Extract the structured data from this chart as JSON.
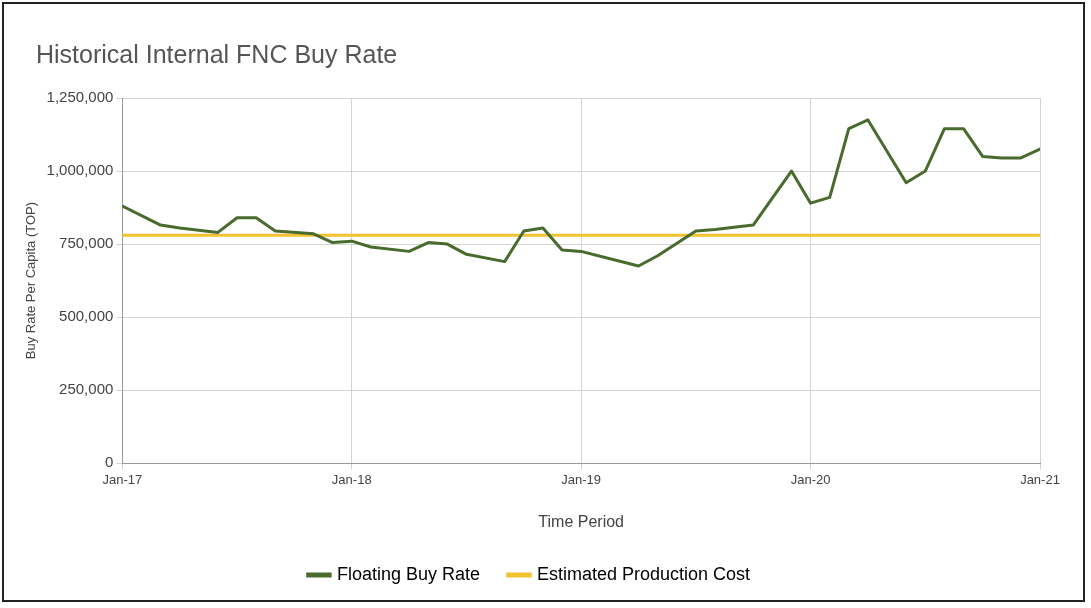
{
  "chart_data": {
    "type": "line",
    "title": "Historical Internal FNC Buy Rate",
    "xlabel": "Time Period",
    "ylabel": "Buy Rate Per Capita (TOP)",
    "xlim": [
      "2017-01",
      "2021-01"
    ],
    "xticks": [
      {
        "value": "2017-01",
        "label": "Jan-17"
      },
      {
        "value": "2018-01",
        "label": "Jan-18"
      },
      {
        "value": "2019-01",
        "label": "Jan-19"
      },
      {
        "value": "2020-01",
        "label": "Jan-20"
      },
      {
        "value": "2021-01",
        "label": "Jan-21"
      }
    ],
    "ylim": [
      0,
      1250000
    ],
    "yticks": [
      0,
      {
        "value": 250000,
        "label": "250,000"
      },
      {
        "value": 500000,
        "label": "500,000"
      },
      {
        "value": 750000,
        "label": "750,000"
      },
      {
        "value": 1000000,
        "label": "1,000,000"
      },
      {
        "value": 1250000,
        "label": "1,250,000"
      }
    ],
    "grid": true,
    "legend": "bottom",
    "marker": "none",
    "line_style": "solid",
    "series": [
      {
        "name": "Floating Buy Rate",
        "color": "#4a6b2e",
        "x": [
          "2017-01",
          "2017-03",
          "2017-04",
          "2017-06",
          "2017-07",
          "2017-08",
          "2017-09",
          "2017-11",
          "2017-12",
          "2018-01",
          "2018-02",
          "2018-04",
          "2018-05",
          "2018-06",
          "2018-07",
          "2018-09",
          "2018-10",
          "2018-11",
          "2018-12",
          "2019-01",
          "2019-04",
          "2019-05",
          "2019-07",
          "2019-08",
          "2019-10",
          "2019-12",
          "2020-01",
          "2020-02",
          "2020-03",
          "2020-04",
          "2020-06",
          "2020-07",
          "2020-08",
          "2020-09",
          "2020-10",
          "2020-11",
          "2020-12",
          "2021-01"
        ],
        "values": [
          880000,
          815000,
          805000,
          790000,
          840000,
          840000,
          795000,
          785000,
          755000,
          760000,
          740000,
          725000,
          755000,
          750000,
          715000,
          690000,
          795000,
          805000,
          730000,
          725000,
          675000,
          710000,
          795000,
          800000,
          815000,
          1000000,
          890000,
          910000,
          1145000,
          1175000,
          960000,
          1000000,
          1145000,
          1145000,
          1050000,
          1045000,
          1045000,
          1075000
        ]
      },
      {
        "name": "Estimated Production Cost",
        "color": "#f2c230",
        "x": [
          "2017-01",
          "2021-01"
        ],
        "values": [
          780000,
          780000
        ]
      }
    ]
  }
}
